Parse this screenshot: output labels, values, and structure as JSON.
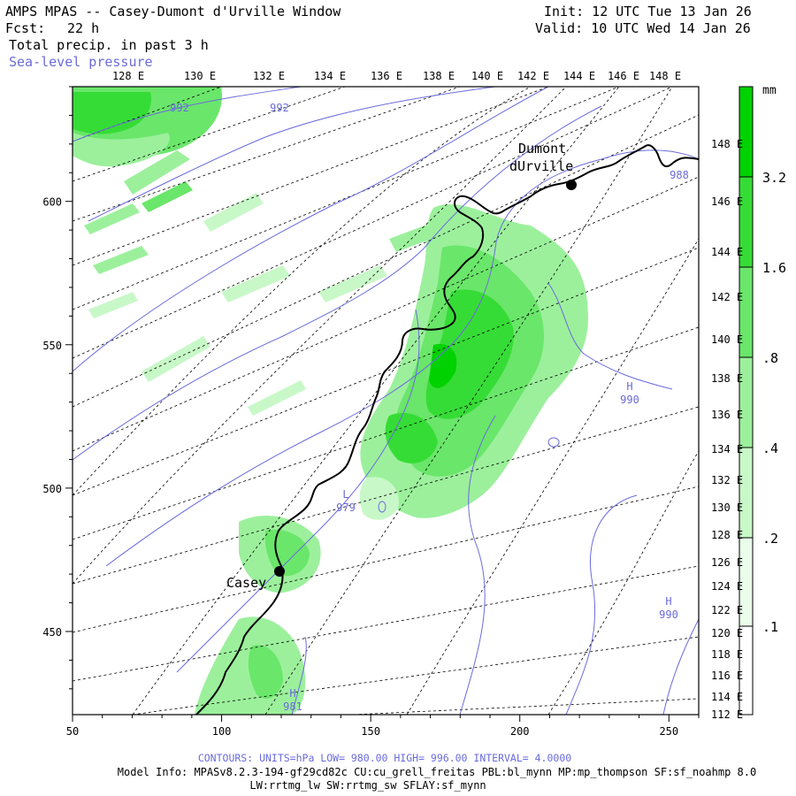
{
  "header": {
    "title": "AMPS MPAS -- Casey-Dumont d'Urville Window",
    "fcst_label": "Fcst:",
    "fcst_value": "22 h",
    "field": "Total precip. in past 3 h",
    "overlay": "Sea-level pressure",
    "init": "Init: 12 UTC Tue 13 Jan 26",
    "valid": "Valid: 10 UTC Wed 14 Jan 26"
  },
  "map": {
    "top_lon_labels": [
      "128 E",
      "130 E",
      "132 E",
      "134 E",
      "136 E",
      "138 E",
      "140 E",
      "142 E",
      "144 E",
      "146 E",
      "148 E"
    ],
    "right_lon_labels": [
      "148 E",
      "146 E",
      "144 E",
      "142 E",
      "140 E",
      "138 E",
      "136 E",
      "134 E",
      "132 E",
      "130 E",
      "128 E",
      "126 E",
      "124 E",
      "122 E",
      "120 E",
      "118 E",
      "116 E",
      "114 E",
      "112 E"
    ],
    "x_ticks": [
      "50",
      "100",
      "150",
      "200",
      "250"
    ],
    "y_ticks": [
      "600",
      "550",
      "500",
      "450"
    ],
    "stations": [
      {
        "name": "Casey"
      },
      {
        "name": "Dumont",
        "name2": "dUrville"
      }
    ],
    "pressure_labels": [
      {
        "text": "992"
      },
      {
        "text": "992"
      },
      {
        "text": "988"
      },
      {
        "text": "H",
        "value": "990"
      },
      {
        "text": "L",
        "value": "979"
      },
      {
        "text": "H",
        "value": "990"
      },
      {
        "text": "H",
        "value": "981"
      }
    ]
  },
  "colorbar": {
    "unit": "mm",
    "labels": [
      "3.2",
      "1.6",
      ".8",
      ".4",
      ".2",
      ".1"
    ],
    "colors": [
      "#00d200",
      "#36dc36",
      "#6ae66a",
      "#9cf09c",
      "#c8f8c8",
      "#eafdea"
    ]
  },
  "footer": {
    "contours": "CONTOURS:  UNITS=hPa  LOW=  980.00       HIGH=  996.00       INTERVAL=   4.0000",
    "model_info": "Model Info: MPASv8.2.3-194-gf29cd82c CU:cu_grell_freitas PBL:bl_mynn MP:mp_thompson SF:sf_noahmp 8.0",
    "model_info2": "LW:rrtmg_lw SW:rrtmg_sw SFLAY:sf_mynn"
  }
}
